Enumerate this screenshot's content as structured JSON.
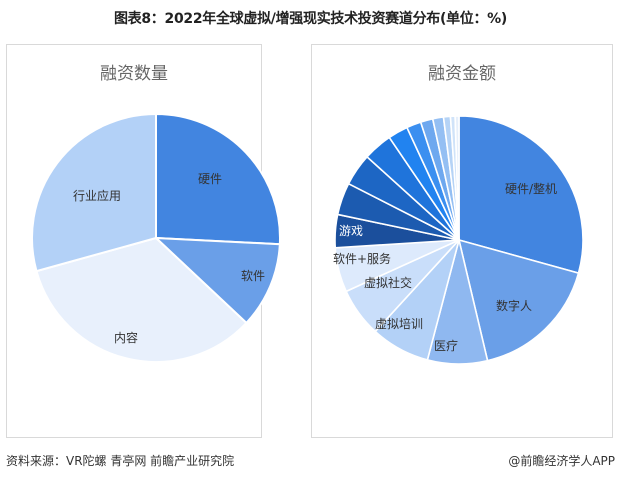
{
  "title": "图表8：2022年全球虚拟/增强现实技术投资赛道分布(单位：%)",
  "footer": {
    "source": "资料来源：VR陀螺 青亭网 前瞻产业研究院",
    "credit": "@前瞻经济学人APP"
  },
  "watermark": "前瞻产业研究院",
  "chart_data": [
    {
      "type": "pie",
      "title": "融资数量",
      "center": [
        156,
        238
      ],
      "radius": 124,
      "start_angle": 0,
      "direction": "clockwise",
      "categories": [
        "硬件",
        "软件",
        "内容",
        "行业应用"
      ],
      "values": [
        25.8,
        11.2,
        33.7,
        29.3
      ],
      "colors": [
        "#4285e0",
        "#6a9fe8",
        "#e8f0fc",
        "#b3d1f7"
      ],
      "labels_shown": [
        "硬件",
        "软件",
        "内容",
        "行业应用"
      ],
      "label_positions": [
        [
          210,
          183
        ],
        [
          253,
          280
        ],
        [
          126,
          342
        ],
        [
          97,
          200
        ]
      ],
      "legend": "none"
    },
    {
      "type": "pie",
      "title": "融资金额",
      "center": [
        459,
        240
      ],
      "radius": 124,
      "start_angle": 0,
      "direction": "clockwise",
      "categories": [
        "硬件/整机",
        "数字人",
        "医疗",
        "虚拟培训",
        "虚拟社交",
        "软件+服务",
        "游戏",
        "其他1",
        "其他2",
        "其他3",
        "其他4",
        "其他5",
        "其他6",
        "其他7",
        "其他8",
        "其他9",
        "其他10"
      ],
      "values": [
        29.3,
        17.0,
        7.8,
        7.7,
        6.4,
        5.8,
        4.3,
        4.2,
        4.2,
        3.8,
        2.6,
        1.9,
        1.6,
        1.4,
        0.9,
        0.6,
        0.5
      ],
      "colors": [
        "#4285e0",
        "#6a9fe8",
        "#8fb8f0",
        "#b3d1f7",
        "#c9defa",
        "#ddeafc",
        "#1b4f9c",
        "#1c5bb0",
        "#1d66c4",
        "#1f74db",
        "#2183f0",
        "#3b8ff0",
        "#6ea8ef",
        "#94bff3",
        "#b5d3f6",
        "#d0e3f9",
        "#e6effb"
      ],
      "labels_shown": [
        "硬件/整机",
        "数字人",
        "医疗",
        "虚拟培训",
        "虚拟社交",
        "软件+服务",
        "游戏"
      ],
      "label_positions": [
        [
          531,
          193
        ],
        [
          514,
          310
        ],
        [
          446,
          350
        ],
        [
          399,
          328
        ],
        [
          388,
          287
        ],
        [
          362,
          263
        ],
        [
          351,
          235
        ]
      ],
      "label_colors": [
        "#333",
        "#333",
        "#333",
        "#333",
        "#333",
        "#333",
        "#ffffff"
      ],
      "legend": "none"
    }
  ]
}
